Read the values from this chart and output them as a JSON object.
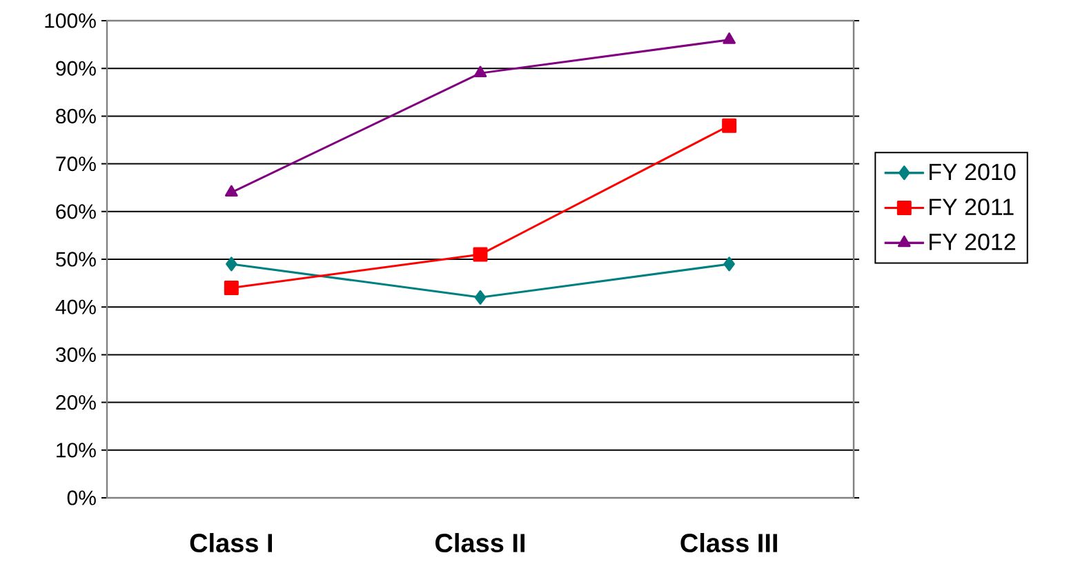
{
  "chart_data": {
    "type": "line",
    "categories": [
      "Class I",
      "Class II",
      "Class III"
    ],
    "series": [
      {
        "name": "FY 2010",
        "color": "#008080",
        "marker": "diamond",
        "values": [
          49,
          42,
          49
        ]
      },
      {
        "name": "FY 2011",
        "color": "#ff0000",
        "marker": "square",
        "values": [
          44,
          51,
          78
        ]
      },
      {
        "name": "FY 2012",
        "color": "#800080",
        "marker": "triangle",
        "values": [
          64,
          89,
          96
        ]
      }
    ],
    "ylim": [
      0,
      100
    ],
    "yticks": [
      {
        "value": 0,
        "label": "0%"
      },
      {
        "value": 10,
        "label": "10%"
      },
      {
        "value": 20,
        "label": "20%"
      },
      {
        "value": 30,
        "label": "30%"
      },
      {
        "value": 40,
        "label": "40%"
      },
      {
        "value": 50,
        "label": "50%"
      },
      {
        "value": 60,
        "label": "60%"
      },
      {
        "value": 70,
        "label": "70%"
      },
      {
        "value": 80,
        "label": "80%"
      },
      {
        "value": 90,
        "label": "90%"
      },
      {
        "value": 100,
        "label": "100%"
      }
    ],
    "grid": "y",
    "legend": "right",
    "line_style": "solid"
  }
}
